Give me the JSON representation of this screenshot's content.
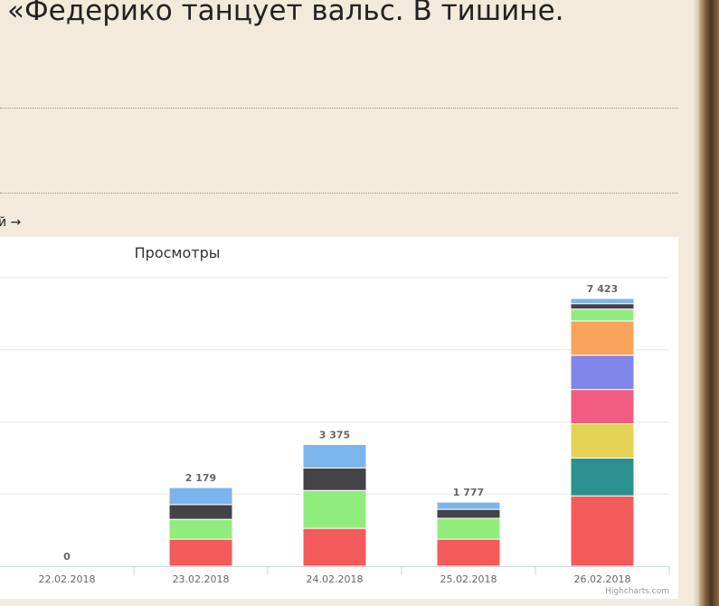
{
  "page": {
    "heading": "«Федерико танцует вальс. В тишине.",
    "more_link": "й →"
  },
  "chart_data": {
    "type": "bar",
    "stacked": true,
    "title": "Просмотры",
    "credits": "Highcharts.com",
    "categories": [
      "22.02.2018",
      "23.02.2018",
      "24.02.2018",
      "25.02.2018",
      "26.02.2018"
    ],
    "totals": [
      "0",
      "2 179",
      "3 375",
      "1 777",
      "7 423"
    ],
    "ylim": [
      0,
      8000
    ],
    "grid": true,
    "series": [
      {
        "color": "#f45b5b",
        "values": [
          0,
          750,
          1050,
          750,
          1950
        ]
      },
      {
        "color": "#2b908f",
        "values": [
          0,
          0,
          0,
          0,
          1050
        ]
      },
      {
        "color": "#e4d354",
        "values": [
          0,
          0,
          0,
          0,
          950
        ]
      },
      {
        "color": "#f15c80",
        "values": [
          0,
          0,
          0,
          0,
          950
        ]
      },
      {
        "color": "#8085e9",
        "values": [
          0,
          0,
          0,
          0,
          950
        ]
      },
      {
        "color": "#f7a35c",
        "values": [
          0,
          0,
          0,
          0,
          950
        ]
      },
      {
        "color": "#90ed7d",
        "values": [
          0,
          550,
          1050,
          580,
          330
        ]
      },
      {
        "color": "#434348",
        "values": [
          0,
          409,
          625,
          247,
          150
        ]
      },
      {
        "color": "#7cb5ec",
        "values": [
          0,
          470,
          650,
          200,
          143
        ]
      }
    ]
  }
}
